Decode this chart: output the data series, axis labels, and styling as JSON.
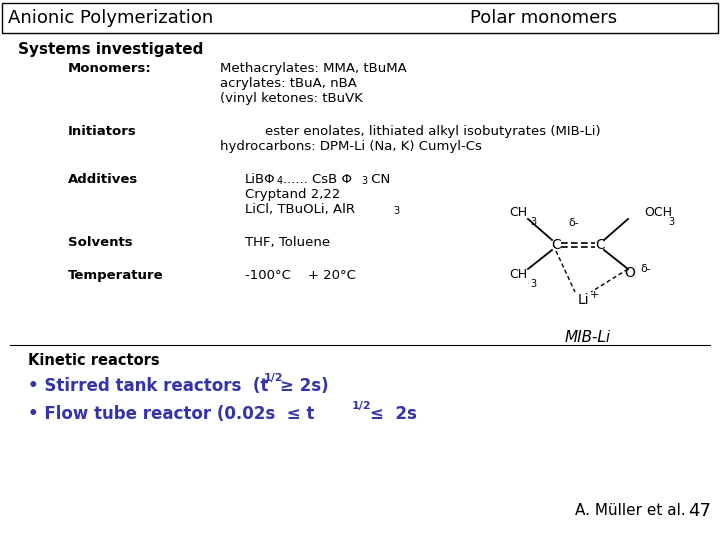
{
  "title_left": "Anionic Polymerization",
  "title_right": "Polar monomers",
  "bg_color": "#ffffff",
  "text_color": "#000000",
  "blue_color": "#3333aa",
  "section1_title": "Systems investigated",
  "monomers_label": "Monomers:",
  "monomers_line1": "Methacrylates: MMA, tBuMA",
  "monomers_line2": "acrylates: tBuA, nBA",
  "monomers_line3": "(vinyl ketones: tBuVK",
  "initiators_label": "Initiators",
  "initiators_line1": "ester enolates, lithiated alkyl isobutyrates (MIB-Li)",
  "initiators_line2": "hydrocarbons: DPM-Li (Na, K) Cumyl-Cs",
  "additives_label": "Additives",
  "additives_line2": "Cryptand 2,22",
  "solvents_label": "Solvents",
  "solvents_line1": "THF, Toluene",
  "temperature_label": "Temperature",
  "temperature_line1": "-100°C    + 20°C",
  "mib_li_label": "MIB-Li",
  "section2_title": "Kinetic reactors",
  "attribution": "A. Müller et al.",
  "page_num": "47"
}
